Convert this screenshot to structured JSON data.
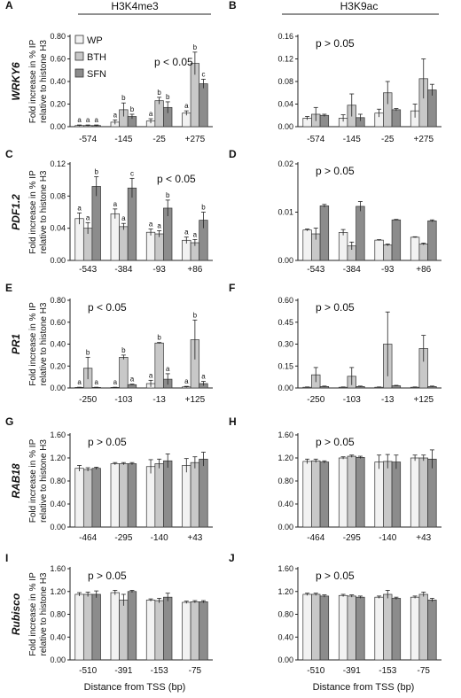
{
  "header": {
    "left_title": "H3K4me3",
    "right_title": "H3K9ac"
  },
  "legend": {
    "entries": [
      {
        "label": "WP",
        "color": "#f2f2f2"
      },
      {
        "label": "BTH",
        "color": "#c8c8c8"
      },
      {
        "label": "SFN",
        "color": "#8c8c8c"
      }
    ]
  },
  "row_labels": [
    "WRKY6",
    "PDF1.2",
    "PR1",
    "RAB18",
    "Rubisco"
  ],
  "ylabel_lines": [
    "Fold increase in % IP",
    "relative to histone H3"
  ],
  "xlabel": "Distance from TSS (bp)",
  "chart_data": [
    {
      "panel": "A",
      "type": "bar",
      "row": 0,
      "col": 0,
      "categories": [
        "-574",
        "-145",
        "-25",
        "+275"
      ],
      "yticks": [
        "0.00",
        "0.20",
        "0.40",
        "0.60",
        "0.80"
      ],
      "ylim": [
        0,
        0.8
      ],
      "annotation": "p < 0.05",
      "series": [
        {
          "name": "WP",
          "values": [
            0.01,
            0.04,
            0.05,
            0.12
          ],
          "errors": [
            0.005,
            0.02,
            0.02,
            0.02
          ]
        },
        {
          "name": "BTH",
          "values": [
            0.01,
            0.15,
            0.23,
            0.56
          ],
          "errors": [
            0.005,
            0.06,
            0.03,
            0.1
          ]
        },
        {
          "name": "SFN",
          "values": [
            0.01,
            0.09,
            0.17,
            0.38
          ],
          "errors": [
            0.005,
            0.02,
            0.05,
            0.04
          ]
        }
      ],
      "letters": [
        [
          "a",
          "a",
          "a"
        ],
        [
          "a",
          "b",
          "b"
        ],
        [
          "a",
          "b",
          "b"
        ],
        [
          "a",
          "b",
          "c"
        ]
      ]
    },
    {
      "panel": "B",
      "type": "bar",
      "row": 0,
      "col": 1,
      "categories": [
        "-574",
        "-145",
        "-25",
        "+275"
      ],
      "yticks": [
        "0.00",
        "0.04",
        "0.08",
        "0.12",
        "0.16"
      ],
      "ylim": [
        0,
        0.16
      ],
      "annotation": "p > 0.05",
      "series": [
        {
          "name": "WP",
          "values": [
            0.015,
            0.015,
            0.024,
            0.028
          ],
          "errors": [
            0.003,
            0.006,
            0.007,
            0.012
          ]
        },
        {
          "name": "BTH",
          "values": [
            0.022,
            0.038,
            0.06,
            0.085
          ],
          "errors": [
            0.012,
            0.02,
            0.02,
            0.035
          ]
        },
        {
          "name": "SFN",
          "values": [
            0.02,
            0.016,
            0.03,
            0.065
          ],
          "errors": [
            0.002,
            0.006,
            0.002,
            0.01
          ]
        }
      ],
      "letters": []
    },
    {
      "panel": "C",
      "type": "bar",
      "row": 1,
      "col": 0,
      "categories": [
        "-543",
        "-384",
        "-93",
        "+86"
      ],
      "yticks": [
        "0.00",
        "0.04",
        "0.08",
        "0.12"
      ],
      "ylim": [
        0,
        0.12
      ],
      "annotation": "p < 0.05",
      "series": [
        {
          "name": "WP",
          "values": [
            0.052,
            0.058,
            0.035,
            0.025
          ],
          "errors": [
            0.007,
            0.006,
            0.004,
            0.004
          ]
        },
        {
          "name": "BTH",
          "values": [
            0.04,
            0.042,
            0.033,
            0.022
          ],
          "errors": [
            0.007,
            0.004,
            0.004,
            0.004
          ]
        },
        {
          "name": "SFN",
          "values": [
            0.092,
            0.09,
            0.065,
            0.05
          ],
          "errors": [
            0.012,
            0.012,
            0.01,
            0.01
          ]
        }
      ],
      "letters": [
        [
          "a",
          "a",
          "b"
        ],
        [
          "a",
          "a",
          "c"
        ],
        [
          "a",
          "a",
          "b"
        ],
        [
          "a",
          "a",
          "b"
        ]
      ]
    },
    {
      "panel": "D",
      "type": "bar",
      "row": 1,
      "col": 1,
      "categories": [
        "-543",
        "-384",
        "-93",
        "+86"
      ],
      "yticks": [
        "0.00",
        "0.01",
        "0.02"
      ],
      "ylim": [
        0,
        0.02
      ],
      "annotation": "p > 0.05",
      "series": [
        {
          "name": "WP",
          "values": [
            0.0063,
            0.0058,
            0.0042,
            0.0048
          ],
          "errors": [
            0.0002,
            0.0006,
            0.0001,
            0.0001
          ]
        },
        {
          "name": "BTH",
          "values": [
            0.0055,
            0.003,
            0.0032,
            0.0034
          ],
          "errors": [
            0.0012,
            0.0008,
            0.0002,
            0.0002
          ]
        },
        {
          "name": "SFN",
          "values": [
            0.0113,
            0.0112,
            0.0084,
            0.0082
          ],
          "errors": [
            0.0003,
            0.001,
            0.0001,
            0.0002
          ]
        }
      ],
      "letters": []
    },
    {
      "panel": "E",
      "type": "bar",
      "row": 2,
      "col": 0,
      "categories": [
        "-250",
        "-103",
        "-13",
        "+125"
      ],
      "yticks": [
        "0.00",
        "0.20",
        "0.40",
        "0.60",
        "0.80"
      ],
      "ylim": [
        0,
        0.8
      ],
      "annotation": "p < 0.05",
      "series": [
        {
          "name": "WP",
          "values": [
            0.005,
            0.005,
            0.04,
            0.01
          ],
          "errors": [
            0.002,
            0.002,
            0.03,
            0.005
          ]
        },
        {
          "name": "BTH",
          "values": [
            0.18,
            0.28,
            0.41,
            0.44
          ],
          "errors": [
            0.1,
            0.02,
            0.005,
            0.18
          ]
        },
        {
          "name": "SFN",
          "values": [
            0.005,
            0.03,
            0.08,
            0.04
          ],
          "errors": [
            0.002,
            0.005,
            0.05,
            0.02
          ]
        }
      ],
      "letters": [
        [
          "a",
          "b",
          "a"
        ],
        [
          "a",
          "b",
          "a"
        ],
        [
          "a",
          "b",
          "a"
        ],
        [
          "a",
          "b",
          "a"
        ]
      ]
    },
    {
      "panel": "F",
      "type": "bar",
      "row": 2,
      "col": 1,
      "categories": [
        "-250",
        "-103",
        "-13",
        "+125"
      ],
      "yticks": [
        "0.00",
        "0.15",
        "0.30",
        "0.45",
        "0.60"
      ],
      "ylim": [
        0,
        0.6
      ],
      "annotation": "p > 0.05",
      "series": [
        {
          "name": "WP",
          "values": [
            0.005,
            0.005,
            0.005,
            0.005
          ],
          "errors": [
            0.002,
            0.002,
            0.002,
            0.002
          ]
        },
        {
          "name": "BTH",
          "values": [
            0.09,
            0.08,
            0.3,
            0.27
          ],
          "errors": [
            0.05,
            0.06,
            0.22,
            0.09
          ]
        },
        {
          "name": "SFN",
          "values": [
            0.01,
            0.01,
            0.015,
            0.01
          ],
          "errors": [
            0.003,
            0.003,
            0.003,
            0.003
          ]
        }
      ],
      "letters": []
    },
    {
      "panel": "G",
      "type": "bar",
      "row": 3,
      "col": 0,
      "categories": [
        "-464",
        "-295",
        "-140",
        "+43"
      ],
      "yticks": [
        "0.00",
        "0.40",
        "0.80",
        "1.20",
        "1.60"
      ],
      "ylim": [
        0,
        1.6
      ],
      "annotation": "p > 0.05",
      "series": [
        {
          "name": "WP",
          "values": [
            1.02,
            1.1,
            1.05,
            1.07
          ],
          "errors": [
            0.05,
            0.02,
            0.12,
            0.12
          ]
        },
        {
          "name": "BTH",
          "values": [
            1.0,
            1.1,
            1.1,
            1.12
          ],
          "errors": [
            0.03,
            0.02,
            0.08,
            0.1
          ]
        },
        {
          "name": "SFN",
          "values": [
            1.02,
            1.1,
            1.15,
            1.18
          ],
          "errors": [
            0.02,
            0.02,
            0.12,
            0.12
          ]
        }
      ],
      "letters": []
    },
    {
      "panel": "H",
      "type": "bar",
      "row": 3,
      "col": 1,
      "categories": [
        "-464",
        "-295",
        "-140",
        "+43"
      ],
      "yticks": [
        "0.00",
        "0.40",
        "0.80",
        "1.20",
        "1.60"
      ],
      "ylim": [
        0,
        1.6
      ],
      "annotation": "p > 0.05",
      "series": [
        {
          "name": "WP",
          "values": [
            1.14,
            1.2,
            1.13,
            1.2
          ],
          "errors": [
            0.04,
            0.02,
            0.12,
            0.05
          ]
        },
        {
          "name": "BTH",
          "values": [
            1.15,
            1.23,
            1.14,
            1.2
          ],
          "errors": [
            0.03,
            0.02,
            0.12,
            0.05
          ]
        },
        {
          "name": "SFN",
          "values": [
            1.13,
            1.21,
            1.13,
            1.18
          ],
          "errors": [
            0.02,
            0.02,
            0.12,
            0.16
          ]
        }
      ],
      "letters": []
    },
    {
      "panel": "I",
      "type": "bar",
      "row": 4,
      "col": 0,
      "categories": [
        "-510",
        "-391",
        "-153",
        "-75"
      ],
      "yticks": [
        "0.00",
        "0.40",
        "0.80",
        "1.20",
        "1.60"
      ],
      "ylim": [
        0,
        1.6
      ],
      "annotation": "p > 0.05",
      "series": [
        {
          "name": "WP",
          "values": [
            1.15,
            1.18,
            1.05,
            1.01
          ],
          "errors": [
            0.03,
            0.04,
            0.02,
            0.02
          ]
        },
        {
          "name": "BTH",
          "values": [
            1.15,
            1.05,
            1.04,
            1.02
          ],
          "errors": [
            0.04,
            0.1,
            0.04,
            0.02
          ]
        },
        {
          "name": "SFN",
          "values": [
            1.15,
            1.2,
            1.1,
            1.02
          ],
          "errors": [
            0.06,
            0.02,
            0.07,
            0.02
          ]
        }
      ],
      "letters": []
    },
    {
      "panel": "J",
      "type": "bar",
      "row": 4,
      "col": 1,
      "categories": [
        "-510",
        "-391",
        "-153",
        "-75"
      ],
      "yticks": [
        "0.00",
        "0.40",
        "0.80",
        "1.20",
        "1.60"
      ],
      "ylim": [
        0,
        1.6
      ],
      "annotation": "p > 0.05",
      "series": [
        {
          "name": "WP",
          "values": [
            1.15,
            1.13,
            1.1,
            1.1
          ],
          "errors": [
            0.02,
            0.02,
            0.02,
            0.02
          ]
        },
        {
          "name": "BTH",
          "values": [
            1.15,
            1.12,
            1.15,
            1.15
          ],
          "errors": [
            0.02,
            0.02,
            0.07,
            0.04
          ]
        },
        {
          "name": "SFN",
          "values": [
            1.12,
            1.1,
            1.08,
            1.05
          ],
          "errors": [
            0.02,
            0.02,
            0.02,
            0.03
          ]
        }
      ],
      "letters": []
    }
  ]
}
